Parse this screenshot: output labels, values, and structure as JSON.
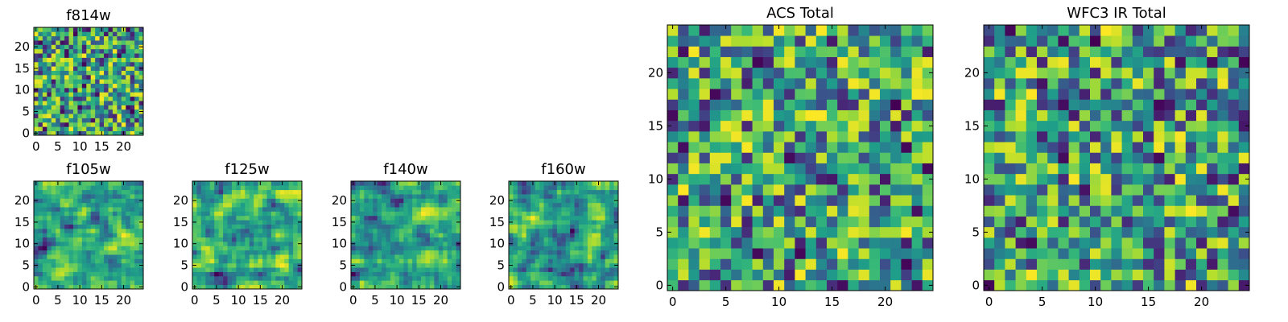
{
  "chart_data": [
    {
      "type": "heatmap",
      "title": "f814w",
      "grid_size": [
        25,
        25
      ],
      "colormap": "viridis",
      "xlim": [
        -0.5,
        24.5
      ],
      "ylim": [
        -0.5,
        24.5
      ],
      "xticks": [
        0,
        5,
        10,
        15,
        20
      ],
      "yticks": [
        0,
        5,
        10,
        15,
        20
      ],
      "grid": false
    },
    {
      "type": "heatmap",
      "title": "f105w",
      "grid_size": [
        25,
        25
      ],
      "colormap": "viridis",
      "xlim": [
        -0.5,
        24.5
      ],
      "ylim": [
        -0.5,
        24.5
      ],
      "xticks": [
        0,
        5,
        10,
        15,
        20
      ],
      "yticks": [
        0,
        5,
        10,
        15,
        20
      ],
      "grid": false
    },
    {
      "type": "heatmap",
      "title": "f125w",
      "grid_size": [
        25,
        25
      ],
      "colormap": "viridis",
      "xlim": [
        -0.5,
        24.5
      ],
      "ylim": [
        -0.5,
        24.5
      ],
      "xticks": [
        0,
        5,
        10,
        15,
        20
      ],
      "yticks": [
        0,
        5,
        10,
        15,
        20
      ],
      "grid": false
    },
    {
      "type": "heatmap",
      "title": "f140w",
      "grid_size": [
        25,
        25
      ],
      "colormap": "viridis",
      "xlim": [
        -0.5,
        24.5
      ],
      "ylim": [
        -0.5,
        24.5
      ],
      "xticks": [
        0,
        5,
        10,
        15,
        20
      ],
      "yticks": [
        0,
        5,
        10,
        15,
        20
      ],
      "grid": false
    },
    {
      "type": "heatmap",
      "title": "f160w",
      "grid_size": [
        25,
        25
      ],
      "colormap": "viridis",
      "xlim": [
        -0.5,
        24.5
      ],
      "ylim": [
        -0.5,
        24.5
      ],
      "xticks": [
        0,
        5,
        10,
        15,
        20
      ],
      "yticks": [
        0,
        5,
        10,
        15,
        20
      ],
      "grid": false
    },
    {
      "type": "heatmap",
      "title": "ACS Total",
      "grid_size": [
        25,
        25
      ],
      "colormap": "viridis",
      "xlim": [
        -0.5,
        24.5
      ],
      "ylim": [
        -0.5,
        24.5
      ],
      "xticks": [
        0,
        5,
        10,
        15,
        20
      ],
      "yticks": [
        0,
        5,
        10,
        15,
        20
      ],
      "grid": false
    },
    {
      "type": "heatmap",
      "title": "WFC3 IR Total",
      "grid_size": [
        25,
        25
      ],
      "colormap": "viridis",
      "xlim": [
        -0.5,
        24.5
      ],
      "ylim": [
        -0.5,
        24.5
      ],
      "xticks": [
        0,
        5,
        10,
        15,
        20
      ],
      "yticks": [
        0,
        5,
        10,
        15,
        20
      ],
      "grid": false
    }
  ]
}
